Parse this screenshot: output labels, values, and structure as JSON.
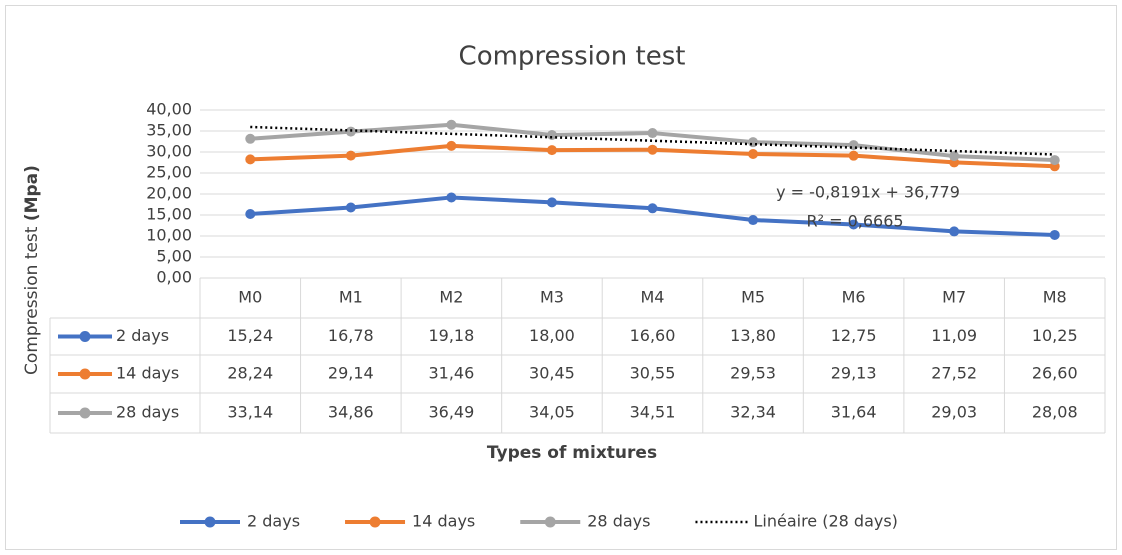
{
  "chart_data": {
    "type": "line",
    "title": "Compression test",
    "y_label": "Compression test",
    "y_label_unit": "(Mpa)",
    "x_label": "Types of mixtures",
    "categories": [
      "M0",
      "M1",
      "M2",
      "M3",
      "M4",
      "M5",
      "M6",
      "M7",
      "M8"
    ],
    "series": [
      {
        "name": "2 days",
        "color": "#4472c4",
        "values": [
          15.24,
          16.78,
          19.18,
          18.0,
          16.6,
          13.8,
          12.75,
          11.09,
          10.25
        ],
        "value_labels": [
          "15,24",
          "16,78",
          "19,18",
          "18,00",
          "16,60",
          "13,80",
          "12,75",
          "11,09",
          "10,25"
        ]
      },
      {
        "name": "14 days",
        "color": "#ed7d31",
        "values": [
          28.24,
          29.14,
          31.46,
          30.45,
          30.55,
          29.53,
          29.13,
          27.52,
          26.6
        ],
        "value_labels": [
          "28,24",
          "29,14",
          "31,46",
          "30,45",
          "30,55",
          "29,53",
          "29,13",
          "27,52",
          "26,60"
        ]
      },
      {
        "name": "28 days",
        "color": "#a5a5a5",
        "values": [
          33.14,
          34.86,
          36.49,
          34.05,
          34.51,
          32.34,
          31.64,
          29.03,
          28.08
        ],
        "value_labels": [
          "33,14",
          "34,86",
          "36,49",
          "34,05",
          "34,51",
          "32,34",
          "31,64",
          "29,03",
          "28,08"
        ]
      }
    ],
    "trendline": {
      "name": "Linéaire (28 days)",
      "color": "#000000",
      "slope": -0.8191,
      "intercept": 36.779,
      "equation_label": "y = -0,8191x + 36,779",
      "r2_label": "R² = 0,6665"
    },
    "ylim": [
      0,
      40
    ],
    "yticks": [
      {
        "value": 0,
        "label": "0,00"
      },
      {
        "value": 5,
        "label": "5,00"
      },
      {
        "value": 10,
        "label": "10,00"
      },
      {
        "value": 15,
        "label": "15,00"
      },
      {
        "value": 20,
        "label": "20,00"
      },
      {
        "value": 25,
        "label": "25,00"
      },
      {
        "value": 30,
        "label": "30,00"
      },
      {
        "value": 35,
        "label": "35,00"
      },
      {
        "value": 40,
        "label": "40,00"
      }
    ],
    "grid": true,
    "legend": "bottom"
  }
}
